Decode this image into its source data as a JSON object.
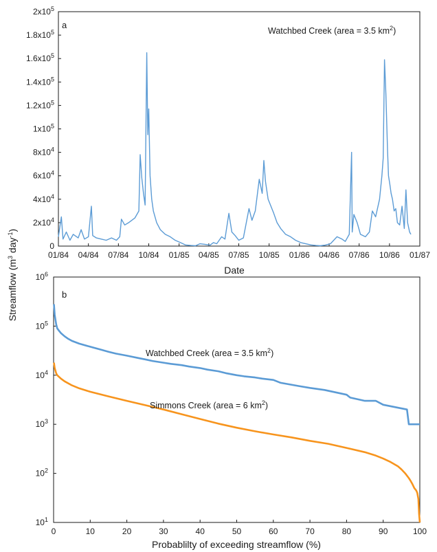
{
  "y_axis_label_main": "Streamflow (m",
  "y_axis_label_sup1": "3",
  "y_axis_label_mid": " day",
  "y_axis_label_sup2": "-1",
  "y_axis_label_end": ")",
  "chart_data": [
    {
      "type": "line",
      "panel_letter": "a",
      "annotation_main": "Watchbed Creek (area = 3.5 km",
      "annotation_sup": "2",
      "annotation_end": ")",
      "xlabel": "Date",
      "x_tick_labels": [
        "01/84",
        "04/84",
        "07/84",
        "10/84",
        "01/85",
        "04/85",
        "07/85",
        "10/85",
        "01/86",
        "04/86",
        "07/86",
        "10/86",
        "01/87"
      ],
      "y_tick_labels": [
        {
          "value": 0,
          "base": "0",
          "sup": ""
        },
        {
          "value": 20000,
          "base": "2x10",
          "sup": "4"
        },
        {
          "value": 40000,
          "base": "4x10",
          "sup": "4"
        },
        {
          "value": 60000,
          "base": "6x10",
          "sup": "4"
        },
        {
          "value": 80000,
          "base": "8x10",
          "sup": "4"
        },
        {
          "value": 100000,
          "base": "1x10",
          "sup": "5"
        },
        {
          "value": 120000,
          "base": "1.2x10",
          "sup": "5"
        },
        {
          "value": 140000,
          "base": "1.4x10",
          "sup": "5"
        },
        {
          "value": 160000,
          "base": "1.6x10",
          "sup": "5"
        },
        {
          "value": 180000,
          "base": "1.8x10",
          "sup": "5"
        },
        {
          "value": 200000,
          "base": "2x10",
          "sup": "5"
        }
      ],
      "ylim": [
        0,
        200000
      ],
      "color": "#5b9bd5",
      "series": [
        {
          "x": [
            "1984-01-01",
            "1984-01-10",
            "1984-01-15",
            "1984-01-25",
            "1984-02-05",
            "1984-02-15",
            "1984-03-01",
            "1984-03-10",
            "1984-03-20",
            "1984-04-01",
            "1984-04-10",
            "1984-04-14",
            "1984-04-25",
            "1984-05-10",
            "1984-05-25",
            "1984-06-10",
            "1984-06-25",
            "1984-07-05",
            "1984-07-10",
            "1984-07-20",
            "1984-08-01",
            "1984-08-20",
            "1984-09-01",
            "1984-09-05",
            "1984-09-10",
            "1984-09-15",
            "1984-09-20",
            "1984-09-25",
            "1984-09-28",
            "1984-10-01",
            "1984-10-05",
            "1984-10-10",
            "1984-10-15",
            "1984-10-25",
            "1984-11-05",
            "1984-11-20",
            "1984-12-05",
            "1984-12-20",
            "1985-01-05",
            "1985-01-20",
            "1985-02-05",
            "1985-02-20",
            "1985-03-05",
            "1985-03-20",
            "1985-04-05",
            "1985-04-15",
            "1985-04-25",
            "1985-05-10",
            "1985-05-20",
            "1985-06-01",
            "1985-06-10",
            "1985-06-20",
            "1985-07-01",
            "1985-07-15",
            "1985-08-01",
            "1985-08-10",
            "1985-08-20",
            "1985-09-01",
            "1985-09-10",
            "1985-09-15",
            "1985-09-20",
            "1985-09-28",
            "1985-10-05",
            "1985-10-15",
            "1985-10-25",
            "1985-11-05",
            "1985-11-20",
            "1985-12-05",
            "1985-12-20",
            "1986-01-05",
            "1986-01-20",
            "1986-02-05",
            "1986-02-20",
            "1986-03-05",
            "1986-03-20",
            "1986-04-05",
            "1986-04-15",
            "1986-04-25",
            "1986-05-10",
            "1986-05-20",
            "1986-06-01",
            "1986-06-08",
            "1986-06-10",
            "1986-06-15",
            "1986-06-25",
            "1986-07-05",
            "1986-07-20",
            "1986-08-01",
            "1986-08-10",
            "1986-08-20",
            "1986-09-01",
            "1986-09-08",
            "1986-09-12",
            "1986-09-16",
            "1986-09-20",
            "1986-09-25",
            "1986-09-28",
            "1986-10-02",
            "1986-10-06",
            "1986-10-10",
            "1986-10-15",
            "1986-10-20",
            "1986-10-25",
            "1986-11-01",
            "1986-11-08",
            "1986-11-15",
            "1986-11-20",
            "1986-11-25",
            "1986-12-01",
            "1986-12-05"
          ],
          "y": [
            8000,
            25000,
            6000,
            12000,
            5000,
            10000,
            7000,
            14000,
            6000,
            8000,
            34000,
            9000,
            7000,
            6000,
            5000,
            7000,
            5000,
            8000,
            23000,
            18000,
            20000,
            24000,
            30000,
            78000,
            58000,
            45000,
            35000,
            165000,
            95000,
            117000,
            60000,
            40000,
            30000,
            20000,
            14000,
            10000,
            8000,
            5000,
            3000,
            1000,
            500,
            300,
            2000,
            1500,
            800,
            3000,
            2000,
            8000,
            6000,
            28000,
            12000,
            9000,
            5000,
            7000,
            32000,
            22000,
            30000,
            57000,
            45000,
            73000,
            55000,
            40000,
            35000,
            28000,
            20000,
            15000,
            10000,
            8000,
            5000,
            3000,
            2000,
            1000,
            500,
            300,
            800,
            2000,
            5000,
            8000,
            6000,
            4000,
            10000,
            80000,
            12000,
            27000,
            20000,
            10000,
            8000,
            12000,
            30000,
            25000,
            40000,
            60000,
            75000,
            159000,
            130000,
            82000,
            60000,
            53000,
            45000,
            40000,
            30000,
            32000,
            20000,
            18000,
            34000,
            15000,
            48000,
            20000,
            12000,
            10000
          ]
        }
      ]
    },
    {
      "type": "line",
      "panel_letter": "b",
      "xlabel": "Probablilty of exceeding streamflow (%)",
      "x_tick_labels": [
        "0",
        "10",
        "20",
        "30",
        "40",
        "50",
        "60",
        "70",
        "80",
        "90",
        "100"
      ],
      "y_tick_labels": [
        {
          "value": 10,
          "base": "10",
          "sup": "1"
        },
        {
          "value": 100,
          "base": "10",
          "sup": "2"
        },
        {
          "value": 1000,
          "base": "10",
          "sup": "3"
        },
        {
          "value": 10000,
          "base": "10",
          "sup": "4"
        },
        {
          "value": 100000,
          "base": "10",
          "sup": "5"
        },
        {
          "value": 1000000,
          "base": "10",
          "sup": "6"
        }
      ],
      "xlim": [
        0,
        100
      ],
      "ylim": [
        10,
        1000000
      ],
      "yscale": "log",
      "series": [
        {
          "name": "Watchbed Creek (area = 3.5 km2)",
          "label_main": "Watchbed Creek (area = 3.5 km",
          "label_sup": "2",
          "label_end": ")",
          "color": "#5b9bd5",
          "x": [
            0.1,
            0.3,
            0.7,
            1,
            1.5,
            2,
            3,
            4,
            5,
            7,
            10,
            13,
            15,
            17,
            20,
            23,
            25,
            27,
            30,
            32,
            35,
            37,
            40,
            42,
            45,
            47,
            50,
            52,
            55,
            57,
            60,
            62,
            67,
            70,
            74,
            80,
            81,
            85,
            88,
            90,
            96.5,
            97,
            100
          ],
          "y": [
            280000,
            170000,
            110000,
            90000,
            80000,
            72000,
            62000,
            55000,
            50000,
            44000,
            38000,
            33000,
            30000,
            27500,
            25000,
            22500,
            21000,
            19500,
            18000,
            17000,
            16000,
            15000,
            14000,
            13000,
            12000,
            11000,
            10000,
            9500,
            9000,
            8500,
            8000,
            7000,
            6000,
            5500,
            5000,
            4000,
            3500,
            3000,
            3000,
            2500,
            2000,
            1000,
            1000
          ]
        },
        {
          "name": "Simmons Creek (area = 6 km2)",
          "label_main": "Simmons Creek (area = 6 km",
          "label_sup": "2",
          "label_end": ")",
          "color": "#f7941d",
          "x": [
            0.1,
            0.3,
            0.7,
            1,
            2,
            3,
            5,
            7,
            10,
            15,
            20,
            25,
            30,
            35,
            40,
            45,
            50,
            55,
            60,
            65,
            70,
            75,
            80,
            85,
            88,
            90,
            92,
            94,
            95,
            96,
            97,
            97.5,
            98,
            98.5,
            99,
            99.3,
            99.6,
            99.8,
            100
          ],
          "y": [
            18000,
            14000,
            11000,
            10000,
            8500,
            7500,
            6200,
            5400,
            4600,
            3700,
            3000,
            2450,
            2000,
            1600,
            1280,
            1030,
            850,
            720,
            620,
            540,
            460,
            400,
            330,
            270,
            230,
            200,
            170,
            140,
            120,
            100,
            80,
            70,
            60,
            50,
            45,
            40,
            30,
            15,
            10
          ]
        }
      ]
    }
  ]
}
